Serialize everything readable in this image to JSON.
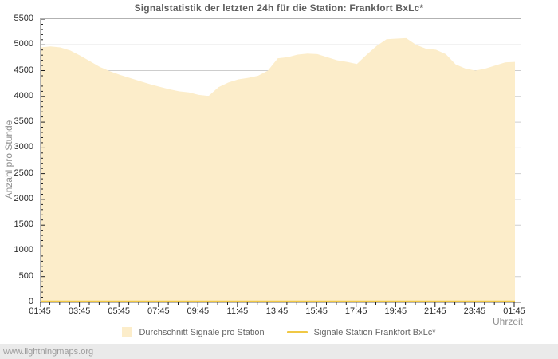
{
  "footer": {
    "watermark": "www.lightningmaps.org"
  },
  "colors": {
    "area_fill": "#fcedca",
    "station_line": "#f0c845",
    "gridline": "#cdcdcd",
    "plot_border": "#b2b2b2",
    "title_text": "#5e5e5e",
    "tick_text": "#2b2b2b",
    "axis_title_text": "#8f8f8f",
    "footer_bg": "#eaeaea",
    "footer_text": "#9c9c9c"
  },
  "chart_data": {
    "type": "area",
    "title": "Signalstatistik der letzten 24h für die Station: Frankfort BxLc*",
    "xlabel": "Uhrzeit",
    "ylabel": "Anzahl pro Stunde",
    "ylim": [
      0,
      5500
    ],
    "y_tick_step": 500,
    "y_minor_tick_step": 100,
    "x_minor_tick_minutes": 30,
    "grid": true,
    "legend_position": "bottom",
    "x_tick_labels": [
      "01:45",
      "03:45",
      "05:45",
      "07:45",
      "09:45",
      "11:45",
      "13:45",
      "15:45",
      "17:45",
      "19:45",
      "21:45",
      "23:45",
      "01:45"
    ],
    "series": [
      {
        "name": "Durchschnitt Signale pro Station",
        "type": "area",
        "color": "#fcedca",
        "times": [
          "01:45",
          "02:15",
          "02:45",
          "03:15",
          "03:45",
          "04:15",
          "04:45",
          "05:15",
          "05:45",
          "06:15",
          "06:45",
          "07:15",
          "07:45",
          "08:15",
          "08:45",
          "09:15",
          "09:45",
          "10:15",
          "10:45",
          "11:15",
          "11:45",
          "12:15",
          "12:45",
          "13:15",
          "13:45",
          "14:15",
          "14:45",
          "15:15",
          "15:45",
          "16:15",
          "16:45",
          "17:15",
          "17:45",
          "18:15",
          "18:45",
          "19:15",
          "19:45",
          "20:15",
          "20:45",
          "21:15",
          "21:45",
          "22:15",
          "22:45",
          "23:15",
          "23:45",
          "00:15",
          "00:45",
          "01:15",
          "01:45"
        ],
        "values": [
          4950,
          4970,
          4950,
          4890,
          4790,
          4680,
          4570,
          4490,
          4420,
          4360,
          4300,
          4240,
          4190,
          4140,
          4100,
          4080,
          4030,
          4010,
          4180,
          4270,
          4330,
          4360,
          4400,
          4500,
          4740,
          4760,
          4810,
          4830,
          4820,
          4760,
          4700,
          4670,
          4630,
          4810,
          4980,
          5110,
          5120,
          5130,
          5000,
          4925,
          4905,
          4820,
          4620,
          4540,
          4500,
          4540,
          4600,
          4660,
          4670
        ]
      },
      {
        "name": "Signale Station Frankfort BxLc*",
        "type": "line",
        "color": "#f0c845",
        "constant_value": 20
      }
    ]
  }
}
